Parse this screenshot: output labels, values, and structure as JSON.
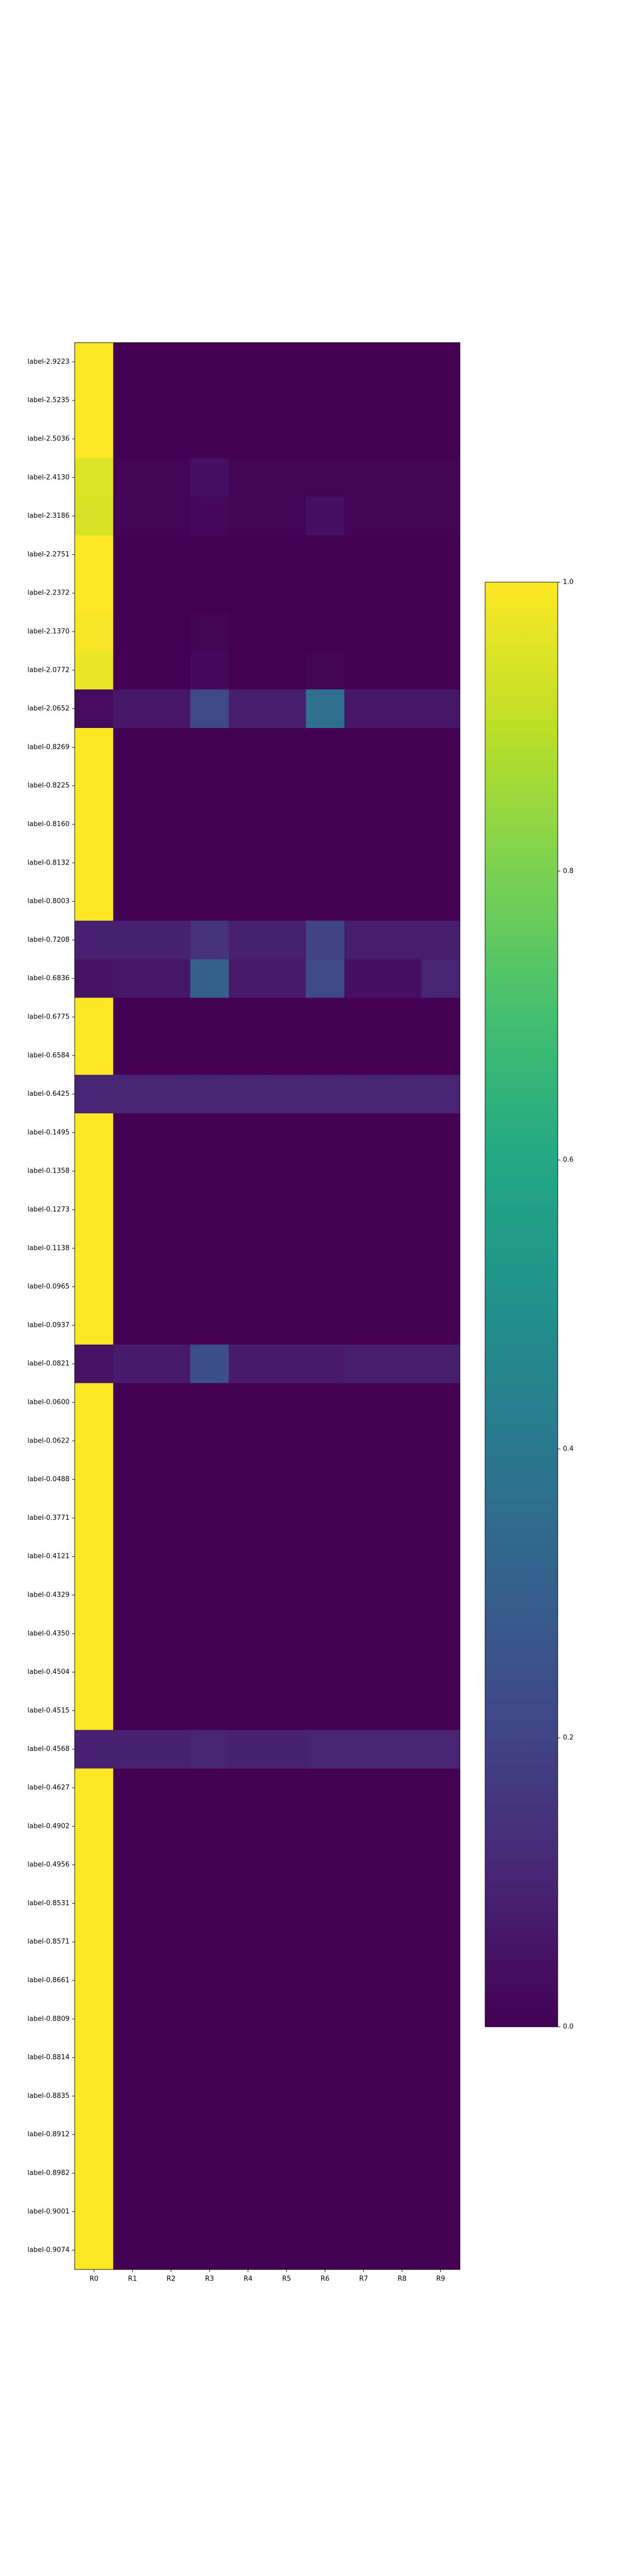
{
  "chart_data": {
    "type": "heatmap",
    "title": "",
    "xlabel": "",
    "ylabel": "",
    "columns": [
      "R0",
      "R1",
      "R2",
      "R3",
      "R4",
      "R5",
      "R6",
      "R7",
      "R8",
      "R9"
    ],
    "rows": [
      "label-2.9223",
      "label-2.5235",
      "label-2.5036",
      "label-2.4130",
      "label-2.3186",
      "label-2.2751",
      "label-2.2372",
      "label-2.1370",
      "label-2.0772",
      "label-2.0652",
      "label-0.8269",
      "label-0.8225",
      "label-0.8160",
      "label-0.8132",
      "label-0.8003",
      "label-0.7208",
      "label-0.6836",
      "label-0.6775",
      "label-0.6584",
      "label-0.6425",
      "label-0.1495",
      "label-0.1358",
      "label-0.1273",
      "label-0.1138",
      "label-0.0965",
      "label-0.0937",
      "label-0.0821",
      "label-0.0600",
      "label-0.0622",
      "label-0.0488",
      "label-0.3771",
      "label-0.4121",
      "label-0.4329",
      "label-0.4350",
      "label-0.4504",
      "label-0.4515",
      "label-0.4568",
      "label-0.4627",
      "label-0.4902",
      "label-0.4956",
      "label-0.8531",
      "label-0.8571",
      "label-0.8661",
      "label-0.8809",
      "label-0.8814",
      "label-0.8835",
      "label-0.8912",
      "label-0.8982",
      "label-0.9001",
      "label-0.9074"
    ],
    "values": [
      [
        1.0,
        0,
        0,
        0,
        0,
        0,
        0,
        0,
        0,
        0
      ],
      [
        1.0,
        0,
        0,
        0,
        0,
        0,
        0,
        0,
        0,
        0
      ],
      [
        1.0,
        0,
        0,
        0,
        0,
        0,
        0,
        0,
        0,
        0
      ],
      [
        0.95,
        0.01,
        0.01,
        0.04,
        0.01,
        0.01,
        0.01,
        0.01,
        0.01,
        0.01
      ],
      [
        0.94,
        0.01,
        0.01,
        0.02,
        0.01,
        0.01,
        0.04,
        0.01,
        0.01,
        0.01
      ],
      [
        1.0,
        0,
        0,
        0,
        0,
        0,
        0,
        0,
        0,
        0
      ],
      [
        1.0,
        0,
        0,
        0,
        0,
        0,
        0,
        0,
        0,
        0
      ],
      [
        0.99,
        0,
        0,
        0.01,
        0,
        0,
        0,
        0,
        0,
        0
      ],
      [
        0.97,
        0,
        0,
        0.02,
        0,
        0,
        0.01,
        0,
        0,
        0
      ],
      [
        0.03,
        0.06,
        0.06,
        0.22,
        0.08,
        0.08,
        0.36,
        0.06,
        0.06,
        0.06
      ],
      [
        1.0,
        0,
        0,
        0,
        0,
        0,
        0,
        0,
        0,
        0
      ],
      [
        1.0,
        0,
        0,
        0,
        0,
        0,
        0,
        0,
        0,
        0
      ],
      [
        1.0,
        0,
        0,
        0,
        0,
        0,
        0,
        0,
        0,
        0
      ],
      [
        1.0,
        0,
        0,
        0,
        0,
        0,
        0,
        0,
        0,
        0
      ],
      [
        1.0,
        0,
        0,
        0,
        0,
        0,
        0,
        0,
        0,
        0
      ],
      [
        0.09,
        0.09,
        0.09,
        0.14,
        0.09,
        0.09,
        0.2,
        0.08,
        0.08,
        0.08
      ],
      [
        0.05,
        0.06,
        0.06,
        0.3,
        0.07,
        0.07,
        0.22,
        0.04,
        0.04,
        0.1
      ],
      [
        1.0,
        0,
        0,
        0,
        0,
        0,
        0,
        0,
        0,
        0
      ],
      [
        1.0,
        0,
        0,
        0,
        0,
        0,
        0,
        0,
        0,
        0
      ],
      [
        0.1,
        0.1,
        0.1,
        0.1,
        0.1,
        0.1,
        0.1,
        0.1,
        0.1,
        0.1
      ],
      [
        1.0,
        0,
        0,
        0,
        0,
        0,
        0,
        0,
        0,
        0
      ],
      [
        1.0,
        0,
        0,
        0,
        0,
        0,
        0,
        0,
        0,
        0
      ],
      [
        1.0,
        0,
        0,
        0,
        0,
        0,
        0,
        0,
        0,
        0
      ],
      [
        1.0,
        0,
        0,
        0,
        0,
        0,
        0,
        0,
        0,
        0
      ],
      [
        1.0,
        0,
        0,
        0,
        0,
        0,
        0,
        0,
        0,
        0
      ],
      [
        1.0,
        0,
        0,
        0,
        0,
        0,
        0,
        0,
        0,
        0
      ],
      [
        0.05,
        0.07,
        0.07,
        0.24,
        0.07,
        0.07,
        0.07,
        0.08,
        0.08,
        0.08
      ],
      [
        1.0,
        0,
        0,
        0,
        0,
        0,
        0,
        0,
        0,
        0
      ],
      [
        1.0,
        0,
        0,
        0,
        0,
        0,
        0,
        0,
        0,
        0
      ],
      [
        1.0,
        0,
        0,
        0,
        0,
        0,
        0,
        0,
        0,
        0
      ],
      [
        1.0,
        0,
        0,
        0,
        0,
        0,
        0,
        0,
        0,
        0
      ],
      [
        1.0,
        0,
        0,
        0,
        0,
        0,
        0,
        0,
        0,
        0
      ],
      [
        1.0,
        0,
        0,
        0,
        0,
        0,
        0,
        0,
        0,
        0
      ],
      [
        1.0,
        0,
        0,
        0,
        0,
        0,
        0,
        0,
        0,
        0
      ],
      [
        1.0,
        0,
        0,
        0,
        0,
        0,
        0,
        0,
        0,
        0
      ],
      [
        1.0,
        0,
        0,
        0,
        0,
        0,
        0,
        0,
        0,
        0
      ],
      [
        0.09,
        0.09,
        0.09,
        0.1,
        0.09,
        0.09,
        0.1,
        0.1,
        0.1,
        0.1
      ],
      [
        1.0,
        0,
        0,
        0,
        0,
        0,
        0,
        0,
        0,
        0
      ],
      [
        1.0,
        0,
        0,
        0,
        0,
        0,
        0,
        0,
        0,
        0
      ],
      [
        1.0,
        0,
        0,
        0,
        0,
        0,
        0,
        0,
        0,
        0
      ],
      [
        1.0,
        0,
        0,
        0,
        0,
        0,
        0,
        0,
        0,
        0
      ],
      [
        1.0,
        0,
        0,
        0,
        0,
        0,
        0,
        0,
        0,
        0
      ],
      [
        1.0,
        0,
        0,
        0,
        0,
        0,
        0,
        0,
        0,
        0
      ],
      [
        1.0,
        0,
        0,
        0,
        0,
        0,
        0,
        0,
        0,
        0
      ],
      [
        1.0,
        0,
        0,
        0,
        0,
        0,
        0,
        0,
        0,
        0
      ],
      [
        1.0,
        0,
        0,
        0,
        0,
        0,
        0,
        0,
        0,
        0
      ],
      [
        1.0,
        0,
        0,
        0,
        0,
        0,
        0,
        0,
        0,
        0
      ],
      [
        1.0,
        0,
        0,
        0,
        0,
        0,
        0,
        0,
        0,
        0
      ],
      [
        1.0,
        0,
        0,
        0,
        0,
        0,
        0,
        0,
        0,
        0
      ],
      [
        1.0,
        0,
        0,
        0,
        0,
        0,
        0,
        0,
        0,
        0
      ]
    ],
    "value_range": [
      0.0,
      1.0
    ],
    "colormap": "viridis",
    "colorbar": {
      "ticks": [
        0.0,
        0.2,
        0.4,
        0.6,
        0.8,
        1.0
      ],
      "tick_labels": [
        "0.0",
        "0.2",
        "0.4",
        "0.6",
        "0.8",
        "1.0"
      ],
      "placement": "right"
    },
    "grid": false,
    "colors": {
      "low": "#440154",
      "mid": "#21918c",
      "high": "#fde725"
    }
  }
}
